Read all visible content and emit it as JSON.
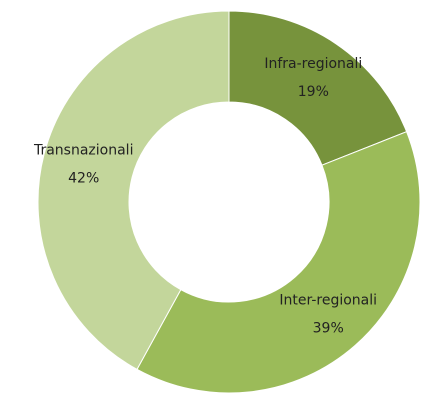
{
  "chart_data": {
    "type": "donut",
    "categories": [
      "Infra-regionali",
      "Inter-regionali",
      "Transnazionali"
    ],
    "values": [
      19,
      39,
      42
    ],
    "value_labels": [
      "19%",
      "39%",
      "42%"
    ],
    "colors": [
      "#77933c",
      "#9bbb59",
      "#c3d69b"
    ]
  }
}
